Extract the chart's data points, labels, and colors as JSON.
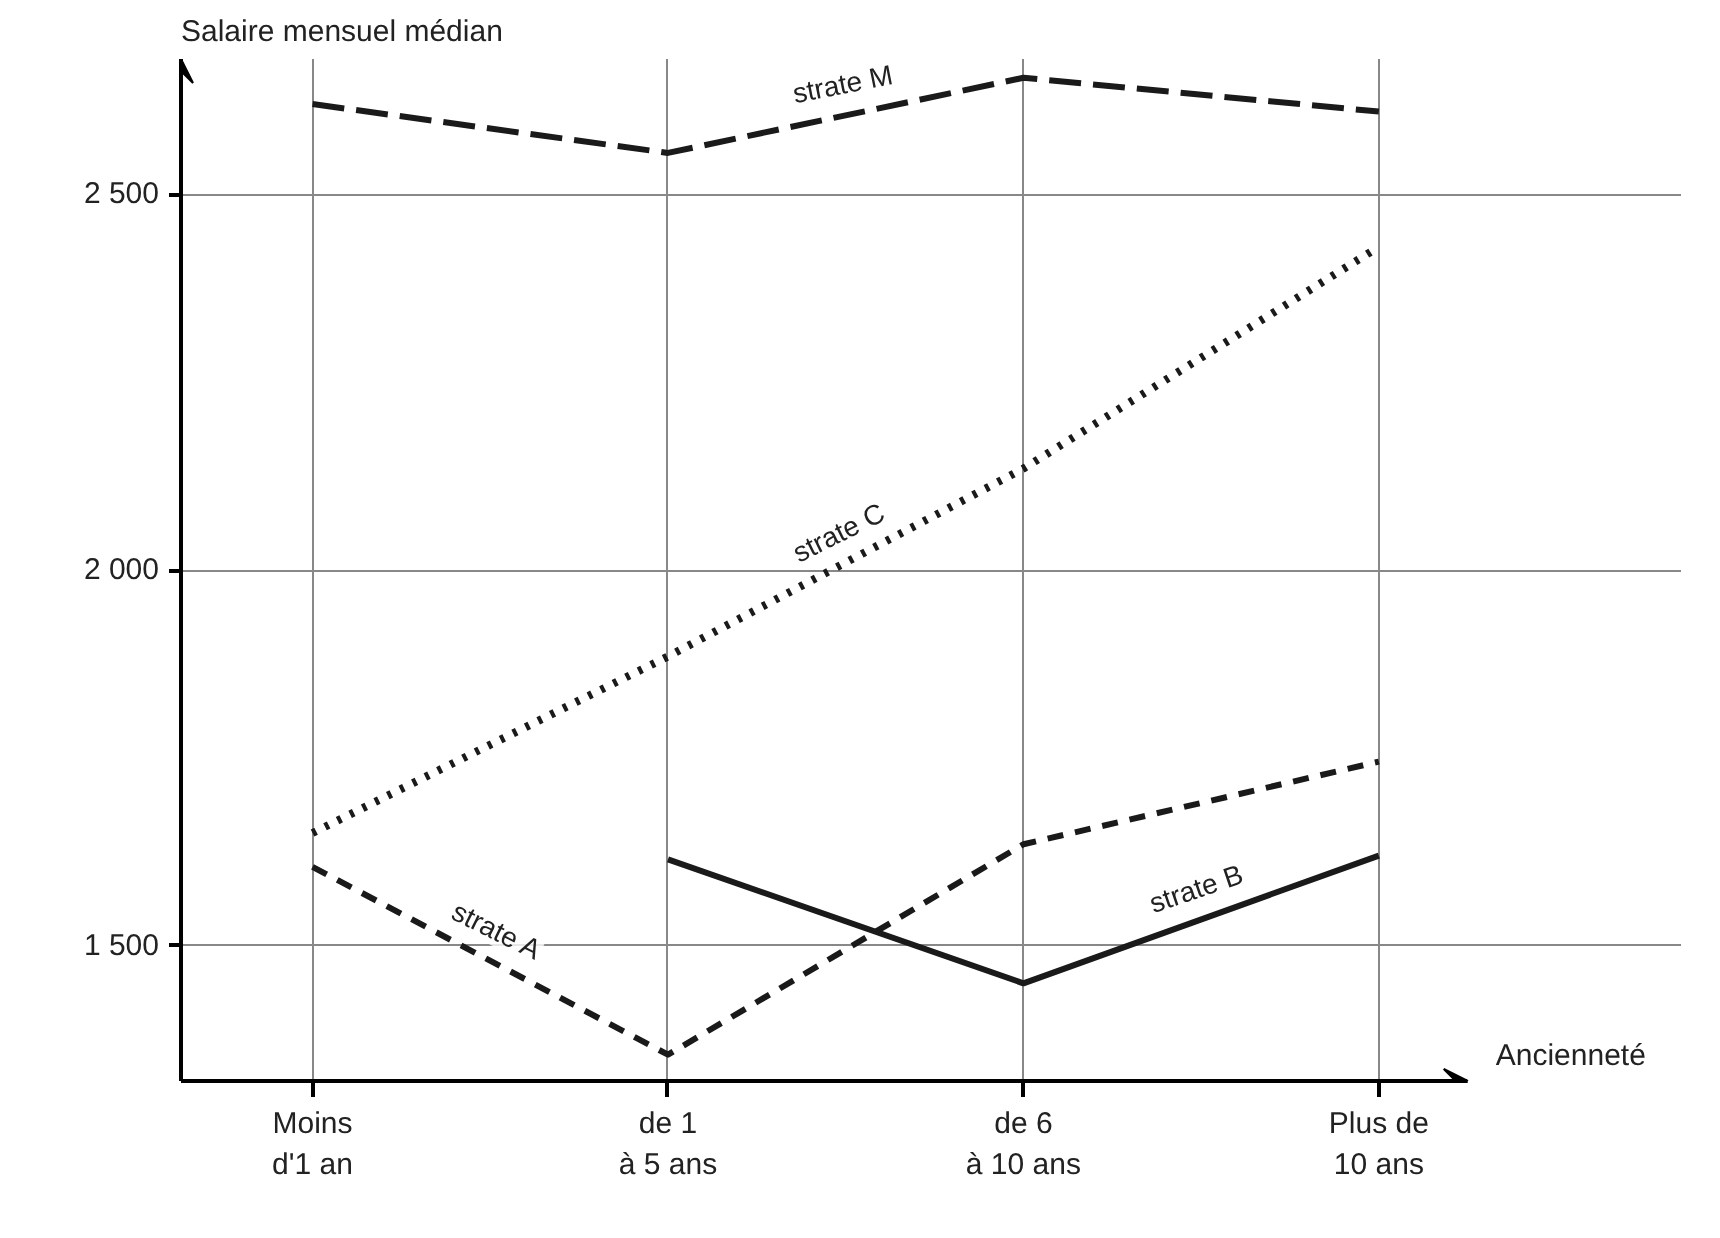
{
  "chart_data": {
    "type": "line",
    "xlabel": "Ancienneté",
    "ylabel": "Salaire mensuel médian",
    "categories": [
      "Moins\nd'1 an",
      "de 1\nà 5 ans",
      "de 6\nà 10 ans",
      "Plus de\n10 ans"
    ],
    "series": [
      {
        "name": "strate M",
        "color": "#1a1a1a",
        "line_style": "longdash",
        "values": [
          2620,
          2555,
          2655,
          2610
        ]
      },
      {
        "name": "strate C",
        "color": "#1a1a1a",
        "line_style": "dotted",
        "values": [
          1650,
          1885,
          2135,
          2430
        ]
      },
      {
        "name": "strate A",
        "color": "#1a1a1a",
        "line_style": "dashed",
        "values": [
          1605,
          1355,
          1635,
          1745
        ]
      },
      {
        "name": "strate B",
        "color": "#1a1a1a",
        "line_style": "solid",
        "values": [
          null,
          1615,
          1450,
          1620
        ]
      }
    ],
    "ylim": [
      1320,
      2680
    ],
    "yticks": [
      {
        "value": 1500,
        "label": "1 500"
      },
      {
        "value": 2000,
        "label": "2 000"
      },
      {
        "value": 2500,
        "label": "2 500"
      }
    ],
    "grid": true,
    "marker": "none"
  }
}
